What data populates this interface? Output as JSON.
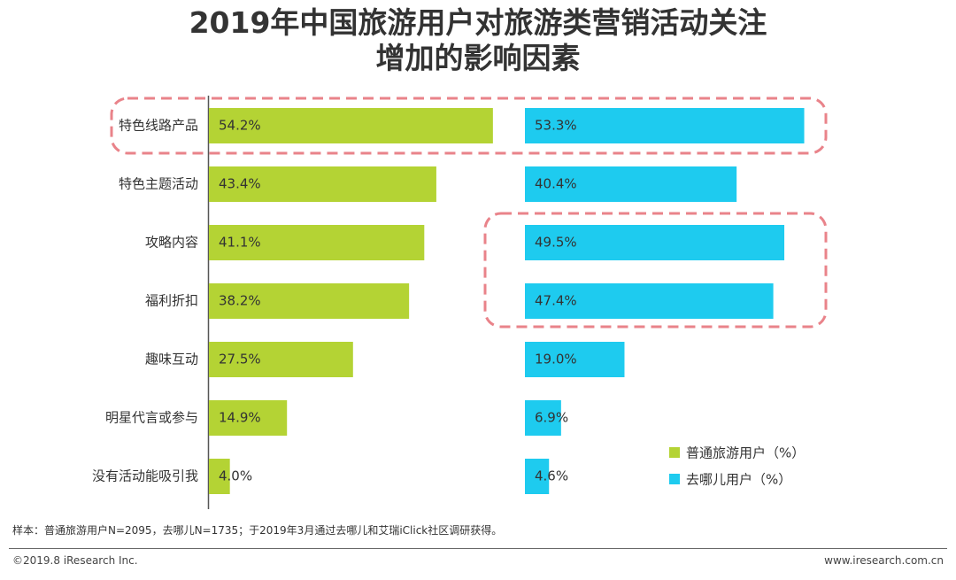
{
  "title_line1": "2019年中国旅游用户对旅游类营销活动关注",
  "title_line2": "增加的影响因素",
  "colors": {
    "series1": "#b4d334",
    "series2": "#1ecbef",
    "highlight": "#e9838a",
    "axis": "#555555"
  },
  "chart_data": {
    "type": "bar",
    "orientation": "horizontal",
    "title": "2019年中国旅游用户对旅游类营销活动关注增加的影响因素",
    "categories": [
      "特色线路产品",
      "特色主题活动",
      "攻略内容",
      "福利折扣",
      "趣味互动",
      "明星代言或参与",
      "没有活动能吸引我"
    ],
    "series": [
      {
        "name": "普通旅游用户（%）",
        "values": [
          54.2,
          43.4,
          41.1,
          38.2,
          27.5,
          14.9,
          4.0
        ],
        "labels": [
          "54.2%",
          "43.4%",
          "41.1%",
          "38.2%",
          "27.5%",
          "14.9%",
          "4.0%"
        ]
      },
      {
        "name": "去哪儿用户（%）",
        "values": [
          53.3,
          40.4,
          49.5,
          47.4,
          19.0,
          6.9,
          4.6
        ],
        "labels": [
          "53.3%",
          "40.4%",
          "49.5%",
          "47.4%",
          "19.0%",
          "6.9%",
          "4.6%"
        ]
      }
    ],
    "xlim": [
      0,
      60
    ],
    "legend": "bottom-right",
    "highlights": [
      {
        "category": "特色线路产品",
        "series": "both"
      },
      {
        "categories": [
          "攻略内容",
          "福利折扣"
        ],
        "series": "去哪儿用户（%）"
      }
    ]
  },
  "footer": {
    "note": "样本：普通旅游用户N=2095，去哪儿N=1735；于2019年3月通过去哪儿和艾瑞iClick社区调研获得。",
    "copyright": "©2019.8 iResearch Inc.",
    "website": "www.iresearch.com.cn"
  }
}
